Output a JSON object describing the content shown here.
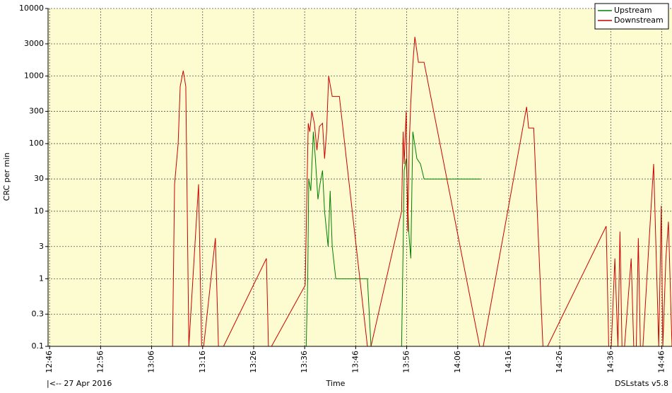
{
  "chart_data": {
    "type": "line",
    "xlabel": "Time",
    "ylabel": "CRC per min",
    "date_label": "|<-- 27 Apr 2016",
    "footer": "DSLstats v5.8",
    "log_y": true,
    "grid": true,
    "legend": "upper right",
    "xlim": [
      765.7,
      888
    ],
    "ylim": [
      0.1,
      10000
    ],
    "xticks": [
      {
        "value": 766,
        "label": "12:46"
      },
      {
        "value": 776,
        "label": "12:56"
      },
      {
        "value": 786,
        "label": "13:06"
      },
      {
        "value": 796,
        "label": "13:16"
      },
      {
        "value": 806,
        "label": "13:26"
      },
      {
        "value": 816,
        "label": "13:36"
      },
      {
        "value": 826,
        "label": "13:46"
      },
      {
        "value": 836,
        "label": "13:56"
      },
      {
        "value": 846,
        "label": "14:06"
      },
      {
        "value": 856,
        "label": "14:16"
      },
      {
        "value": 866,
        "label": "14:26"
      },
      {
        "value": 876,
        "label": "14:36"
      },
      {
        "value": 886,
        "label": "14:46"
      }
    ],
    "yticks": [
      0.1,
      0.3,
      1,
      3,
      10,
      30,
      100,
      300,
      1000,
      3000,
      10000
    ],
    "series": [
      {
        "name": "Upstream",
        "color": "#008000",
        "x": [
          816.3,
          816.6,
          816.8,
          817.2,
          817.7,
          818.1,
          818.6,
          819.0,
          819.5,
          819.9,
          820.3,
          820.6,
          821.0,
          821.4,
          822.1,
          822.8,
          828.3,
          829.0,
          835.0,
          835.3,
          835.5,
          835.9,
          836.4,
          836.8,
          837.2,
          838.0,
          838.7,
          839.4,
          850.5
        ],
        "values": [
          0.1,
          1,
          30,
          20,
          150,
          60,
          15,
          25,
          40,
          10,
          5,
          3,
          20,
          3,
          1,
          1,
          1,
          0.1,
          0.1,
          3,
          40,
          60,
          5,
          2,
          150,
          60,
          50,
          30,
          30
        ]
      },
      {
        "name": "Downstream",
        "color": "#cc0000",
        "x": [
          790.1,
          790.5,
          791.2,
          791.6,
          792.2,
          792.7,
          793.3,
          795.2,
          795.8,
          796.2,
          798.5,
          799.1,
          800.1,
          808.5,
          808.9,
          809.5,
          816.1,
          816.7,
          817.0,
          817.4,
          817.9,
          818.4,
          818.9,
          819.5,
          819.9,
          820.3,
          820.7,
          821.4,
          822.8,
          828.3,
          829.0,
          835.0,
          835.3,
          835.5,
          835.9,
          836.2,
          836.5,
          836.8,
          837.2,
          837.6,
          838.3,
          839.4,
          850.3,
          851.0,
          859.5,
          859.9,
          860.9,
          862.7,
          863.6,
          875.1,
          875.6,
          876.1,
          876.8,
          877.4,
          877.8,
          878.2,
          878.7,
          880.0,
          880.5,
          881.0,
          881.4,
          881.8,
          882.3,
          884.4,
          885.4,
          885.9,
          886.2,
          886.8,
          887.3,
          888.0
        ],
        "values": [
          0.1,
          25,
          100,
          700,
          1200,
          700,
          0.1,
          25,
          0.1,
          0.1,
          4,
          0.1,
          0.1,
          2,
          0.1,
          0.1,
          0.8,
          200,
          150,
          300,
          200,
          80,
          180,
          200,
          60,
          150,
          1000,
          500,
          500,
          0.1,
          0.1,
          10,
          150,
          50,
          300,
          5,
          100,
          400,
          1500,
          3800,
          1600,
          1600,
          0.1,
          0.1,
          350,
          170,
          170,
          0.1,
          0.1,
          6,
          0.1,
          0.1,
          2,
          0.1,
          5,
          0.1,
          0.1,
          2,
          0.1,
          0.1,
          4,
          0.1,
          0.1,
          50,
          0.1,
          12,
          0.1,
          2,
          7,
          0.1
        ]
      }
    ]
  }
}
